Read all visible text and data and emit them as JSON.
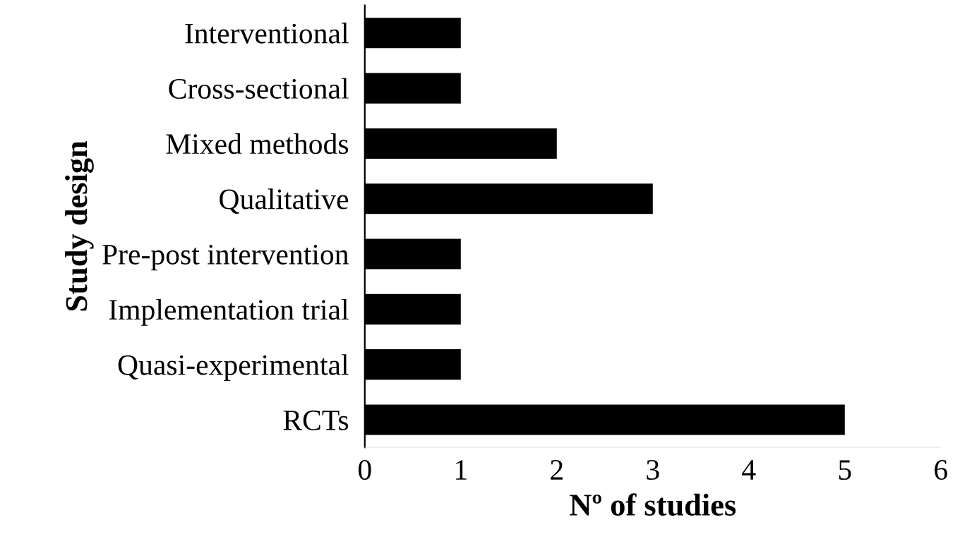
{
  "chart_data": {
    "type": "bar",
    "orientation": "horizontal",
    "categories": [
      "Interventional",
      "Cross-sectional",
      "Mixed methods",
      "Qualitative",
      "Pre-post intervention",
      "Implementation trial",
      "Quasi-experimental",
      "RCTs"
    ],
    "values": [
      1,
      1,
      2,
      3,
      1,
      1,
      1,
      5
    ],
    "color": "#000000",
    "xlim": [
      0,
      6
    ],
    "xticks": [
      0,
      1,
      2,
      3,
      4,
      5,
      6
    ],
    "xlabel": "Nº of studies",
    "ylabel": "Study design",
    "grid": false,
    "legend": false
  }
}
